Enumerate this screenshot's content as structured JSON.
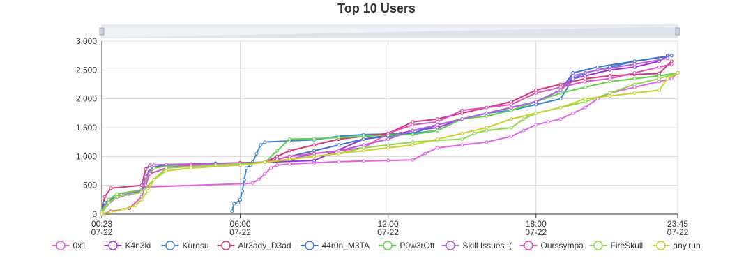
{
  "chart_data": {
    "type": "line",
    "title": "Top 10 Users",
    "xlabel": "",
    "ylabel": "",
    "x_axis": {
      "type": "time",
      "range": [
        "07-22 00:23",
        "07-22 23:45"
      ],
      "ticks": [
        {
          "time": "00:23",
          "date": "07-22"
        },
        {
          "time": "06:00",
          "date": "07-22"
        },
        {
          "time": "12:00",
          "date": "07-22"
        },
        {
          "time": "18:00",
          "date": "07-22"
        },
        {
          "time": "23:45",
          "date": "07-22"
        }
      ]
    },
    "y_axis": {
      "range": [
        0,
        3000
      ],
      "ticks": [
        {
          "value": 0,
          "label": "0"
        },
        {
          "value": 500,
          "label": "500"
        },
        {
          "value": 1000,
          "label": "1,000"
        },
        {
          "value": 1500,
          "label": "1,500"
        },
        {
          "value": 2000,
          "label": "2,000"
        },
        {
          "value": 2500,
          "label": "2,500"
        },
        {
          "value": 3000,
          "label": "3,000"
        }
      ]
    },
    "grid": true,
    "data_zoom": true,
    "legend_position": "bottom",
    "series": [
      {
        "name": "0x1",
        "color": "#e062e0",
        "points": [
          [
            "00:23",
            0
          ],
          [
            "00:30",
            150
          ],
          [
            "00:45",
            250
          ],
          [
            "01:10",
            350
          ],
          [
            "02:00",
            420
          ],
          [
            "02:10",
            470
          ],
          [
            "06:10",
            530
          ],
          [
            "06:30",
            540
          ],
          [
            "06:45",
            600
          ],
          [
            "07:00",
            700
          ],
          [
            "07:15",
            800
          ],
          [
            "07:30",
            850
          ],
          [
            "08:00",
            870
          ],
          [
            "09:00",
            890
          ],
          [
            "10:00",
            910
          ],
          [
            "11:00",
            920
          ],
          [
            "12:00",
            930
          ],
          [
            "13:00",
            940
          ],
          [
            "13:30",
            1050
          ],
          [
            "14:00",
            1150
          ],
          [
            "15:00",
            1200
          ],
          [
            "16:00",
            1250
          ],
          [
            "17:00",
            1350
          ],
          [
            "17:30",
            1450
          ],
          [
            "18:00",
            1550
          ],
          [
            "18:30",
            1600
          ],
          [
            "19:00",
            1650
          ],
          [
            "19:30",
            1750
          ],
          [
            "20:00",
            1850
          ],
          [
            "20:30",
            2000
          ],
          [
            "21:00",
            2100
          ],
          [
            "22:00",
            2200
          ],
          [
            "23:00",
            2300
          ],
          [
            "23:30",
            2350
          ],
          [
            "23:45",
            2450
          ]
        ]
      },
      {
        "name": "K4n3ki",
        "color": "#9b30d9",
        "points": [
          [
            "00:23",
            50
          ],
          [
            "00:45",
            250
          ],
          [
            "01:30",
            350
          ],
          [
            "02:00",
            400
          ],
          [
            "02:10",
            600
          ],
          [
            "02:20",
            800
          ],
          [
            "03:00",
            850
          ],
          [
            "05:00",
            880
          ],
          [
            "07:00",
            900
          ],
          [
            "09:00",
            930
          ],
          [
            "11:00",
            1300
          ],
          [
            "12:30",
            1400
          ],
          [
            "13:00",
            1450
          ],
          [
            "14:00",
            1500
          ],
          [
            "15:00",
            1650
          ],
          [
            "16:00",
            1750
          ],
          [
            "17:00",
            1850
          ],
          [
            "18:00",
            1950
          ],
          [
            "19:00",
            2150
          ],
          [
            "19:30",
            2350
          ],
          [
            "20:00",
            2400
          ],
          [
            "21:00",
            2500
          ],
          [
            "22:00",
            2550
          ],
          [
            "23:00",
            2650
          ],
          [
            "23:20",
            2750
          ]
        ]
      },
      {
        "name": "Kurosu",
        "color": "#3a87c9",
        "points": [
          [
            "05:40",
            50
          ],
          [
            "05:45",
            180
          ],
          [
            "05:55",
            200
          ],
          [
            "06:00",
            250
          ],
          [
            "06:05",
            400
          ],
          [
            "06:10",
            600
          ],
          [
            "06:15",
            800
          ],
          [
            "06:25",
            850
          ],
          [
            "06:30",
            900
          ],
          [
            "06:40",
            1050
          ],
          [
            "06:50",
            1200
          ],
          [
            "07:00",
            1250
          ],
          [
            "08:00",
            1270
          ],
          [
            "09:00",
            1290
          ],
          [
            "10:00",
            1350
          ],
          [
            "11:00",
            1380
          ],
          [
            "12:00",
            1390
          ],
          [
            "13:00",
            1400
          ],
          [
            "14:00",
            1450
          ],
          [
            "15:00",
            1650
          ],
          [
            "16:00",
            1750
          ],
          [
            "17:00",
            1800
          ],
          [
            "18:00",
            1900
          ],
          [
            "19:00",
            2000
          ],
          [
            "19:30",
            2350
          ],
          [
            "20:00",
            2450
          ],
          [
            "21:00",
            2550
          ],
          [
            "22:00",
            2650
          ],
          [
            "23:30",
            2750
          ]
        ]
      },
      {
        "name": "Alr3ady_D3ad",
        "color": "#d6337a",
        "points": [
          [
            "00:23",
            30
          ],
          [
            "00:30",
            300
          ],
          [
            "00:45",
            450
          ],
          [
            "02:00",
            500
          ],
          [
            "02:10",
            780
          ],
          [
            "02:20",
            850
          ],
          [
            "03:00",
            860
          ],
          [
            "04:00",
            870
          ],
          [
            "05:00",
            880
          ],
          [
            "06:00",
            890
          ],
          [
            "07:00",
            900
          ],
          [
            "07:30",
            1000
          ],
          [
            "08:00",
            1100
          ],
          [
            "09:00",
            1200
          ],
          [
            "10:00",
            1300
          ],
          [
            "11:00",
            1350
          ],
          [
            "12:00",
            1400
          ],
          [
            "13:00",
            1600
          ],
          [
            "14:00",
            1650
          ],
          [
            "15:00",
            1750
          ],
          [
            "16:00",
            1850
          ],
          [
            "17:00",
            1950
          ],
          [
            "18:00",
            2150
          ],
          [
            "19:00",
            2250
          ],
          [
            "20:00",
            2350
          ],
          [
            "21:00",
            2400
          ],
          [
            "22:00",
            2420
          ],
          [
            "23:00",
            2440
          ],
          [
            "23:30",
            2650
          ]
        ]
      },
      {
        "name": "44r0n_M3TA",
        "color": "#3b6fd1",
        "points": [
          [
            "00:23",
            20
          ],
          [
            "00:30",
            200
          ],
          [
            "01:00",
            300
          ],
          [
            "02:00",
            400
          ],
          [
            "02:10",
            600
          ],
          [
            "02:20",
            800
          ],
          [
            "03:00",
            850
          ],
          [
            "05:00",
            880
          ],
          [
            "06:00",
            880
          ],
          [
            "07:00",
            900
          ],
          [
            "07:30",
            950
          ],
          [
            "08:00",
            1000
          ],
          [
            "09:00",
            1100
          ],
          [
            "10:00",
            1200
          ],
          [
            "11:00",
            1300
          ],
          [
            "12:00",
            1350
          ],
          [
            "13:00",
            1400
          ],
          [
            "14:00",
            1550
          ],
          [
            "15:00",
            1650
          ],
          [
            "16:00",
            1750
          ],
          [
            "17:00",
            1850
          ],
          [
            "18:00",
            1950
          ],
          [
            "19:00",
            2150
          ],
          [
            "19:30",
            2450
          ],
          [
            "20:30",
            2550
          ],
          [
            "22:00",
            2650
          ],
          [
            "23:30",
            2750
          ]
        ]
      },
      {
        "name": "P0w3rOff",
        "color": "#5fd14a",
        "points": [
          [
            "00:23",
            50
          ],
          [
            "00:40",
            250
          ],
          [
            "01:00",
            350
          ],
          [
            "02:00",
            420
          ],
          [
            "02:10",
            600
          ],
          [
            "02:30",
            800
          ],
          [
            "03:00",
            830
          ],
          [
            "05:00",
            860
          ],
          [
            "07:00",
            900
          ],
          [
            "07:30",
            1100
          ],
          [
            "08:00",
            1300
          ],
          [
            "09:00",
            1310
          ],
          [
            "10:00",
            1330
          ],
          [
            "11:00",
            1350
          ],
          [
            "12:00",
            1370
          ],
          [
            "13:00",
            1380
          ],
          [
            "14:00",
            1450
          ],
          [
            "15:00",
            1650
          ],
          [
            "16:00",
            1700
          ],
          [
            "17:00",
            1800
          ],
          [
            "18:00",
            1950
          ],
          [
            "19:00",
            2100
          ],
          [
            "20:00",
            2200
          ],
          [
            "21:00",
            2300
          ],
          [
            "22:00",
            2350
          ],
          [
            "23:00",
            2400
          ],
          [
            "23:45",
            2450
          ]
        ]
      },
      {
        "name": "Skill Issues :(",
        "color": "#b45ee6",
        "points": [
          [
            "00:23",
            20
          ],
          [
            "00:35",
            150
          ],
          [
            "01:00",
            300
          ],
          [
            "02:00",
            400
          ],
          [
            "02:10",
            650
          ],
          [
            "02:30",
            850
          ],
          [
            "03:00",
            860
          ],
          [
            "05:00",
            870
          ],
          [
            "07:00",
            900
          ],
          [
            "08:00",
            950
          ],
          [
            "09:00",
            1050
          ],
          [
            "10:00",
            1100
          ],
          [
            "11:00",
            1200
          ],
          [
            "12:00",
            1300
          ],
          [
            "13:00",
            1450
          ],
          [
            "14:00",
            1550
          ],
          [
            "15:00",
            1650
          ],
          [
            "16:00",
            1750
          ],
          [
            "17:00",
            1850
          ],
          [
            "18:00",
            1950
          ],
          [
            "19:00",
            2150
          ],
          [
            "19:30",
            2400
          ],
          [
            "20:30",
            2500
          ],
          [
            "22:00",
            2600
          ],
          [
            "23:20",
            2700
          ]
        ]
      },
      {
        "name": "Ourssympa",
        "color": "#e04fc4",
        "points": [
          [
            "00:23",
            0
          ],
          [
            "00:45",
            50
          ],
          [
            "01:30",
            100
          ],
          [
            "02:00",
            300
          ],
          [
            "02:10",
            500
          ],
          [
            "02:20",
            700
          ],
          [
            "03:00",
            800
          ],
          [
            "04:00",
            850
          ],
          [
            "06:00",
            880
          ],
          [
            "07:00",
            900
          ],
          [
            "07:30",
            950
          ],
          [
            "08:00",
            1000
          ],
          [
            "09:00",
            1050
          ],
          [
            "10:00",
            1100
          ],
          [
            "11:00",
            1150
          ],
          [
            "12:00",
            1400
          ],
          [
            "13:00",
            1550
          ],
          [
            "14:00",
            1600
          ],
          [
            "15:00",
            1800
          ],
          [
            "16:00",
            1850
          ],
          [
            "17:00",
            1900
          ],
          [
            "18:00",
            2100
          ],
          [
            "19:00",
            2200
          ],
          [
            "20:00",
            2300
          ],
          [
            "21:00",
            2350
          ],
          [
            "22:00",
            2450
          ],
          [
            "23:00",
            2550
          ],
          [
            "23:30",
            2600
          ]
        ]
      },
      {
        "name": "FireSkull",
        "color": "#8fd64a",
        "points": [
          [
            "00:23",
            30
          ],
          [
            "00:40",
            200
          ],
          [
            "01:00",
            300
          ],
          [
            "02:00",
            380
          ],
          [
            "02:30",
            600
          ],
          [
            "03:00",
            800
          ],
          [
            "05:00",
            850
          ],
          [
            "07:00",
            900
          ],
          [
            "08:00",
            950
          ],
          [
            "09:00",
            1000
          ],
          [
            "10:00",
            1050
          ],
          [
            "11:00",
            1150
          ],
          [
            "12:00",
            1200
          ],
          [
            "13:00",
            1250
          ],
          [
            "14:00",
            1280
          ],
          [
            "15:00",
            1300
          ],
          [
            "15:30",
            1400
          ],
          [
            "16:00",
            1450
          ],
          [
            "17:00",
            1500
          ],
          [
            "17:30",
            1650
          ],
          [
            "18:00",
            1750
          ],
          [
            "19:00",
            1850
          ],
          [
            "20:00",
            1950
          ],
          [
            "21:00",
            2100
          ],
          [
            "22:00",
            2250
          ],
          [
            "23:00",
            2350
          ],
          [
            "23:45",
            2450
          ]
        ]
      },
      {
        "name": "any.run",
        "color": "#c9d02b",
        "points": [
          [
            "00:23",
            0
          ],
          [
            "00:45",
            40
          ],
          [
            "01:15",
            80
          ],
          [
            "01:45",
            150
          ],
          [
            "02:00",
            250
          ],
          [
            "02:15",
            400
          ],
          [
            "02:30",
            600
          ],
          [
            "03:00",
            750
          ],
          [
            "04:00",
            800
          ],
          [
            "06:00",
            850
          ],
          [
            "07:00",
            900
          ],
          [
            "08:00",
            950
          ],
          [
            "09:00",
            1000
          ],
          [
            "10:00",
            1050
          ],
          [
            "11:00",
            1100
          ],
          [
            "12:00",
            1150
          ],
          [
            "13:00",
            1200
          ],
          [
            "14:00",
            1300
          ],
          [
            "15:00",
            1400
          ],
          [
            "16:00",
            1500
          ],
          [
            "17:00",
            1650
          ],
          [
            "18:00",
            1750
          ],
          [
            "19:00",
            1850
          ],
          [
            "20:00",
            2000
          ],
          [
            "21:00",
            2050
          ],
          [
            "22:00",
            2100
          ],
          [
            "23:00",
            2150
          ],
          [
            "23:20",
            2350
          ],
          [
            "23:45",
            2450
          ]
        ]
      }
    ]
  }
}
